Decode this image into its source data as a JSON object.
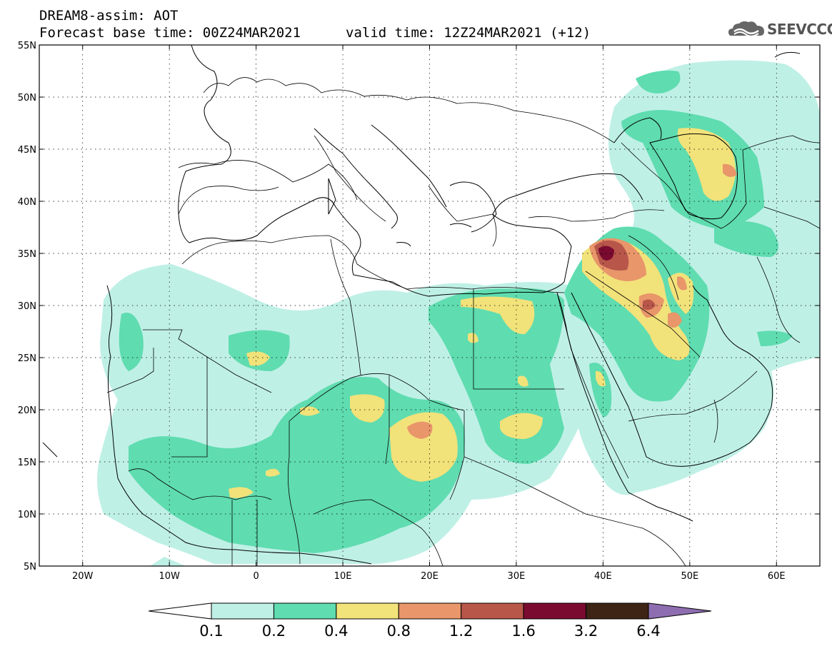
{
  "header": {
    "title": "DREAM8-assim: AOT",
    "base_time": "Forecast base time: 00Z24MAR2021",
    "valid_time": "valid time: 12Z24MAR2021 (+12)",
    "logo_text": "SEEVCCC"
  },
  "map": {
    "lon_range": [
      -25,
      65
    ],
    "lat_range": [
      5,
      55
    ],
    "lat_labels": [
      "55N",
      "50N",
      "45N",
      "40N",
      "35N",
      "30N",
      "25N",
      "20N",
      "15N",
      "10N",
      "5N"
    ],
    "lon_labels": [
      "20W",
      "10W",
      "0",
      "10E",
      "20E",
      "30E",
      "40E",
      "50E",
      "60E"
    ],
    "gridlines": "dotted"
  },
  "legend": {
    "levels": [
      "0.1",
      "0.2",
      "0.4",
      "0.8",
      "1.2",
      "1.6",
      "3.2",
      "6.4"
    ],
    "colors": {
      "below": "#ffffff",
      "c1": "#bff0e6",
      "c2": "#5fdcb0",
      "c3": "#f2e27a",
      "c4": "#e8966a",
      "c5": "#b8564a",
      "c6": "#7a0a30",
      "c7": "#3d2415",
      "above": "#8e6eb0"
    }
  }
}
